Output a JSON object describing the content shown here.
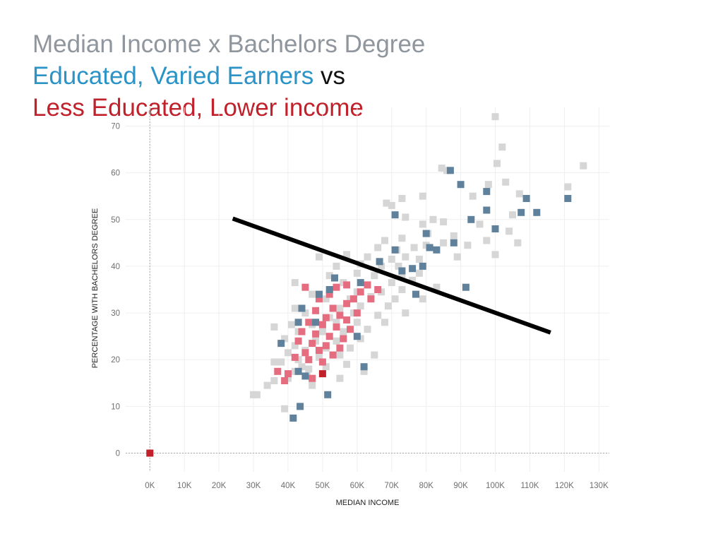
{
  "title": {
    "line1": "Median Income x Bachelors Degree",
    "line2_a": "Educated",
    "line2_b": ", ",
    "line2_c": "Varied Earners",
    "line2_d": " vs",
    "line3": "Less Educated, Lower income"
  },
  "colors": {
    "title_gray": "#8f969d",
    "accent_blue": "#2b93c6",
    "accent_red": "#c0212b",
    "highlight_blue": "#5f819b",
    "highlight_red": "#e56d7f",
    "other_gray": "#d6d6d6",
    "trend_line": "#000000"
  },
  "chart_data": {
    "type": "scatter",
    "xlabel": "MEDIAN INCOME",
    "ylabel": "PERCENTAGE WITH BACHELORS DEGREE",
    "xlim": [
      -7000,
      133000
    ],
    "ylim": [
      -4,
      74
    ],
    "x_ticks": [
      0,
      10000,
      20000,
      30000,
      40000,
      50000,
      60000,
      70000,
      80000,
      90000,
      100000,
      110000,
      120000,
      130000
    ],
    "x_tick_labels": [
      "0K",
      "10K",
      "20K",
      "30K",
      "40K",
      "50K",
      "60K",
      "70K",
      "80K",
      "90K",
      "100K",
      "110K",
      "120K",
      "130K"
    ],
    "y_ticks": [
      0,
      10,
      20,
      30,
      40,
      50,
      60,
      70
    ],
    "y_tick_labels": [
      "0",
      "10",
      "20",
      "30",
      "40",
      "50",
      "60",
      "70"
    ],
    "grid": true,
    "legend": "none",
    "trend_line": {
      "x": [
        24000,
        116000
      ],
      "y": [
        50.2,
        25.8
      ]
    },
    "series": [
      {
        "color": "#d6d6d6",
        "points": [
          [
            100000,
            72
          ],
          [
            102000,
            65.5
          ],
          [
            125500,
            61.5
          ],
          [
            100500,
            62
          ],
          [
            84500,
            61
          ],
          [
            86000,
            60.5
          ],
          [
            103000,
            58
          ],
          [
            98000,
            57.5
          ],
          [
            121000,
            57
          ],
          [
            93500,
            55
          ],
          [
            107000,
            55.5
          ],
          [
            79000,
            55
          ],
          [
            73000,
            54.5
          ],
          [
            68500,
            53.5
          ],
          [
            70000,
            53
          ],
          [
            105000,
            51
          ],
          [
            74000,
            50.5
          ],
          [
            95500,
            49
          ],
          [
            82000,
            50
          ],
          [
            79000,
            49
          ],
          [
            85000,
            49.5
          ],
          [
            104000,
            47.5
          ],
          [
            80500,
            47
          ],
          [
            88000,
            46.5
          ],
          [
            73000,
            46
          ],
          [
            68000,
            45.5
          ],
          [
            106500,
            45
          ],
          [
            97500,
            45.5
          ],
          [
            92000,
            44.5
          ],
          [
            85000,
            45
          ],
          [
            80000,
            44.5
          ],
          [
            76500,
            44
          ],
          [
            71500,
            43.5
          ],
          [
            66000,
            44
          ],
          [
            100000,
            42.5
          ],
          [
            89000,
            42
          ],
          [
            78000,
            41.5
          ],
          [
            74000,
            42
          ],
          [
            70000,
            41.5
          ],
          [
            63000,
            42
          ],
          [
            57000,
            42.5
          ],
          [
            49000,
            42
          ],
          [
            72000,
            40
          ],
          [
            67000,
            40
          ],
          [
            61000,
            40.5
          ],
          [
            54000,
            40
          ],
          [
            78000,
            38.5
          ],
          [
            73000,
            38
          ],
          [
            65000,
            38
          ],
          [
            60000,
            38.5
          ],
          [
            52000,
            38
          ],
          [
            42000,
            36.5
          ],
          [
            76000,
            37
          ],
          [
            70000,
            36.5
          ],
          [
            63000,
            36
          ],
          [
            56000,
            36.5
          ],
          [
            83000,
            35.5
          ],
          [
            73000,
            35
          ],
          [
            67000,
            34.5
          ],
          [
            60000,
            34.5
          ],
          [
            47000,
            34
          ],
          [
            79000,
            33
          ],
          [
            71000,
            33
          ],
          [
            64000,
            33.5
          ],
          [
            58000,
            33
          ],
          [
            51000,
            33
          ],
          [
            42000,
            31
          ],
          [
            45000,
            30
          ],
          [
            69000,
            31.5
          ],
          [
            61000,
            31.5
          ],
          [
            55000,
            31
          ],
          [
            74000,
            30
          ],
          [
            66000,
            29.5
          ],
          [
            59000,
            30
          ],
          [
            52000,
            29
          ],
          [
            41000,
            27.5
          ],
          [
            36000,
            27
          ],
          [
            68000,
            28
          ],
          [
            60000,
            28
          ],
          [
            54000,
            28
          ],
          [
            47000,
            27.5
          ],
          [
            63000,
            26.5
          ],
          [
            56000,
            26
          ],
          [
            50000,
            26
          ],
          [
            43000,
            26
          ],
          [
            39000,
            24.5
          ],
          [
            61000,
            24.5
          ],
          [
            54000,
            24
          ],
          [
            48000,
            24
          ],
          [
            42000,
            23
          ],
          [
            58000,
            22.5
          ],
          [
            51000,
            22.5
          ],
          [
            45000,
            22
          ],
          [
            40000,
            21.5
          ],
          [
            65000,
            21
          ],
          [
            55000,
            21
          ],
          [
            49000,
            20.5
          ],
          [
            43000,
            20
          ],
          [
            36000,
            19.5
          ],
          [
            38000,
            19.5
          ],
          [
            57000,
            19
          ],
          [
            51000,
            18.5
          ],
          [
            46000,
            18
          ],
          [
            42000,
            17.5
          ],
          [
            62000,
            17.5
          ],
          [
            40000,
            16
          ],
          [
            36000,
            15.5
          ],
          [
            55000,
            16
          ],
          [
            47000,
            14.5
          ],
          [
            34000,
            14.5
          ],
          [
            30000,
            12.5
          ],
          [
            31000,
            12.5
          ],
          [
            39000,
            9.5
          ],
          [
            45500,
            16.5
          ],
          [
            44000,
            18.5
          ]
        ]
      },
      {
        "color": "#e56d7f",
        "points": [
          [
            45000,
            35.5
          ],
          [
            54000,
            35.5
          ],
          [
            57000,
            36
          ],
          [
            63000,
            36
          ],
          [
            66000,
            35
          ],
          [
            52000,
            34
          ],
          [
            59000,
            33
          ],
          [
            61000,
            34.5
          ],
          [
            49000,
            33
          ],
          [
            64000,
            33
          ],
          [
            57000,
            32
          ],
          [
            53000,
            31
          ],
          [
            48000,
            30.5
          ],
          [
            60000,
            30
          ],
          [
            55000,
            29.5
          ],
          [
            51000,
            29
          ],
          [
            57000,
            28.5
          ],
          [
            46000,
            28
          ],
          [
            50000,
            27.5
          ],
          [
            54000,
            27
          ],
          [
            58000,
            26.5
          ],
          [
            44000,
            26
          ],
          [
            48000,
            25.5
          ],
          [
            52000,
            25
          ],
          [
            56000,
            24.5
          ],
          [
            43000,
            24
          ],
          [
            47000,
            23.5
          ],
          [
            51000,
            23
          ],
          [
            55000,
            22.5
          ],
          [
            49000,
            22
          ],
          [
            45000,
            21.5
          ],
          [
            53000,
            21
          ],
          [
            42000,
            20.5
          ],
          [
            46000,
            20
          ],
          [
            50000,
            19.5
          ],
          [
            37000,
            17.5
          ],
          [
            40000,
            17
          ],
          [
            39000,
            15.5
          ],
          [
            47000,
            16
          ]
        ]
      },
      {
        "color": "#5f819b",
        "points": [
          [
            87000,
            60.5
          ],
          [
            90000,
            57.5
          ],
          [
            97500,
            56
          ],
          [
            109000,
            54.5
          ],
          [
            121000,
            54.5
          ],
          [
            71000,
            51
          ],
          [
            97500,
            52
          ],
          [
            107500,
            51.5
          ],
          [
            112000,
            51.5
          ],
          [
            93000,
            50
          ],
          [
            100000,
            48
          ],
          [
            80000,
            47
          ],
          [
            81000,
            44
          ],
          [
            83000,
            43.5
          ],
          [
            71000,
            43.5
          ],
          [
            88000,
            45
          ],
          [
            66500,
            41
          ],
          [
            79000,
            40
          ],
          [
            76000,
            39.5
          ],
          [
            73000,
            39
          ],
          [
            61000,
            36.5
          ],
          [
            91500,
            35.5
          ],
          [
            52000,
            35
          ],
          [
            53500,
            37.5
          ],
          [
            49000,
            34
          ],
          [
            44000,
            31
          ],
          [
            77000,
            34
          ],
          [
            43000,
            28
          ],
          [
            48000,
            28
          ],
          [
            60000,
            25
          ],
          [
            38000,
            23.5
          ],
          [
            62000,
            18.5
          ],
          [
            43000,
            17.5
          ],
          [
            45000,
            16.5
          ],
          [
            51500,
            12.5
          ],
          [
            43500,
            10
          ],
          [
            41500,
            7.5
          ]
        ]
      },
      {
        "color": "#c0212b",
        "points": [
          [
            0,
            0
          ],
          [
            50000,
            17
          ]
        ]
      }
    ]
  }
}
